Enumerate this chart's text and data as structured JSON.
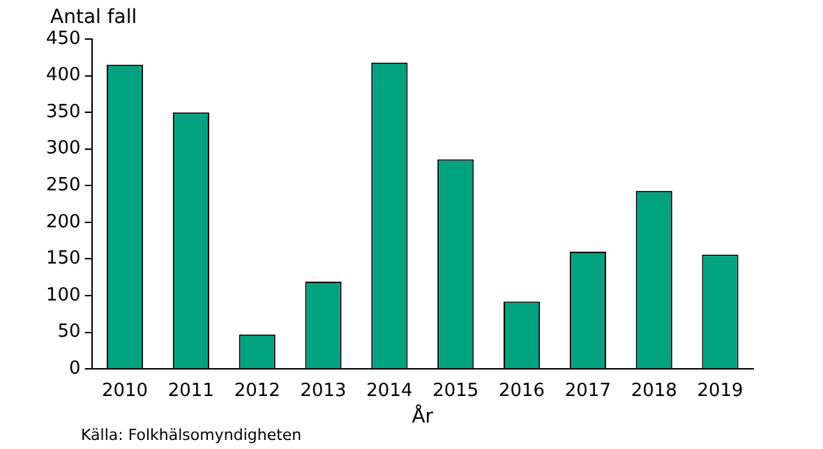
{
  "chart_data": {
    "type": "bar",
    "ylabel": "Antal fall",
    "xlabel": "År",
    "categories": [
      "2010",
      "2011",
      "2012",
      "2013",
      "2014",
      "2015",
      "2016",
      "2017",
      "2018",
      "2019"
    ],
    "values": [
      415,
      350,
      47,
      119,
      418,
      286,
      92,
      160,
      243,
      156
    ],
    "color": "#00a27f",
    "ylim": [
      0,
      450
    ],
    "yticks": [
      0,
      50,
      100,
      150,
      200,
      250,
      300,
      350,
      400,
      450
    ],
    "grid": false,
    "annotations": [
      "Källa: Folkhälsomyndigheten"
    ]
  }
}
